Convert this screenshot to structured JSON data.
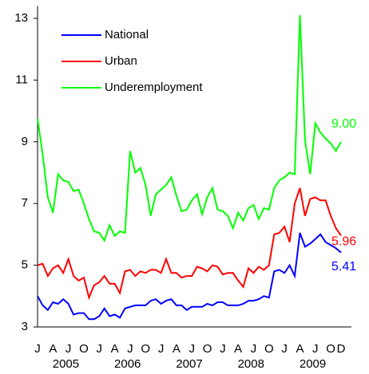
{
  "chart_data": {
    "type": "line",
    "categories": [
      "J",
      null,
      null,
      "A",
      null,
      null,
      "J",
      null,
      null,
      "O",
      null,
      null,
      "J",
      null,
      null,
      "A",
      null,
      null,
      "J",
      null,
      null,
      "O",
      null,
      null,
      "J",
      null,
      null,
      "A",
      null,
      null,
      "J",
      null,
      null,
      "O",
      null,
      null,
      "J",
      null,
      null,
      "A",
      null,
      null,
      "J",
      null,
      null,
      "O",
      null,
      null,
      "J",
      null,
      null,
      "A",
      null,
      null,
      "J",
      null,
      null,
      "O",
      null,
      "D"
    ],
    "years": [
      "2005",
      "2006",
      "2007",
      "2008",
      "2009"
    ],
    "ylim": [
      3,
      13.4
    ],
    "yticks": [
      3,
      5,
      7,
      9,
      11,
      13
    ],
    "legend": "upper left",
    "series": [
      {
        "name": "National",
        "color": "#0000ff",
        "values": [
          4.0,
          3.7,
          3.55,
          3.8,
          3.75,
          3.9,
          3.75,
          3.4,
          3.45,
          3.45,
          3.25,
          3.25,
          3.35,
          3.6,
          3.35,
          3.4,
          3.3,
          3.6,
          3.65,
          3.7,
          3.7,
          3.7,
          3.85,
          3.9,
          3.75,
          3.85,
          3.9,
          3.7,
          3.7,
          3.55,
          3.65,
          3.65,
          3.65,
          3.75,
          3.7,
          3.8,
          3.8,
          3.7,
          3.7,
          3.7,
          3.75,
          3.85,
          3.85,
          3.9,
          4.0,
          3.95,
          4.8,
          4.85,
          4.75,
          5.0,
          4.65,
          6.05,
          5.6,
          5.7,
          5.85,
          6.0,
          5.75,
          5.65,
          5.55,
          5.41
        ],
        "value_labels": [
          null,
          null,
          null,
          null,
          null,
          null,
          null,
          null,
          null,
          null,
          null,
          null,
          null,
          null,
          null,
          null,
          null,
          null,
          null,
          null,
          null,
          null,
          null,
          null,
          null,
          null,
          null,
          null,
          null,
          null,
          null,
          null,
          null,
          null,
          null,
          null,
          null,
          null,
          null,
          null,
          null,
          null,
          null,
          null,
          null,
          null,
          null,
          null,
          null,
          null,
          null,
          null,
          null,
          null,
          null,
          null,
          null,
          null,
          null,
          "5.41"
        ]
      },
      {
        "name": "Urban",
        "color": "#ff0000",
        "values": [
          5.0,
          5.05,
          4.65,
          4.9,
          5.0,
          4.75,
          5.2,
          4.65,
          4.5,
          4.6,
          3.95,
          4.35,
          4.45,
          4.65,
          4.4,
          4.4,
          4.1,
          4.8,
          4.85,
          4.65,
          4.8,
          4.75,
          4.85,
          4.85,
          4.75,
          5.2,
          4.75,
          4.75,
          4.6,
          4.65,
          4.65,
          4.95,
          4.9,
          4.8,
          5.0,
          4.95,
          4.7,
          4.75,
          4.75,
          4.5,
          4.3,
          4.9,
          4.75,
          4.95,
          4.85,
          5.0,
          6.0,
          6.05,
          6.25,
          5.75,
          7.0,
          7.5,
          6.6,
          7.15,
          7.2,
          7.1,
          7.1,
          6.6,
          6.2,
          5.96
        ],
        "value_labels": [
          null,
          null,
          null,
          null,
          null,
          null,
          null,
          null,
          null,
          null,
          null,
          null,
          null,
          null,
          null,
          null,
          null,
          null,
          null,
          null,
          null,
          null,
          null,
          null,
          null,
          null,
          null,
          null,
          null,
          null,
          null,
          null,
          null,
          null,
          null,
          null,
          null,
          null,
          null,
          null,
          null,
          null,
          null,
          null,
          null,
          null,
          null,
          null,
          null,
          null,
          null,
          null,
          null,
          null,
          null,
          null,
          null,
          null,
          null,
          "5.96"
        ]
      },
      {
        "name": "Underemployment",
        "color": "#00ff00",
        "values": [
          9.75,
          8.6,
          7.2,
          6.7,
          7.95,
          7.75,
          7.7,
          7.4,
          7.45,
          7.0,
          6.5,
          6.1,
          6.05,
          5.8,
          6.3,
          5.95,
          6.1,
          6.05,
          8.7,
          8.0,
          8.15,
          7.6,
          6.6,
          7.3,
          7.45,
          7.6,
          7.85,
          7.25,
          6.75,
          6.8,
          7.1,
          7.3,
          6.65,
          7.2,
          7.5,
          6.8,
          6.75,
          6.6,
          6.2,
          6.7,
          6.45,
          6.85,
          6.95,
          6.5,
          6.85,
          6.8,
          7.5,
          7.75,
          7.85,
          8.0,
          7.95,
          13.1,
          9.05,
          7.95,
          9.6,
          9.3,
          9.1,
          8.95,
          8.7,
          9.0
        ],
        "value_labels": [
          null,
          null,
          null,
          null,
          null,
          null,
          null,
          null,
          null,
          null,
          null,
          null,
          null,
          null,
          null,
          null,
          null,
          null,
          null,
          null,
          null,
          null,
          null,
          null,
          null,
          null,
          null,
          null,
          null,
          null,
          null,
          null,
          null,
          null,
          null,
          null,
          null,
          null,
          null,
          null,
          null,
          null,
          null,
          null,
          null,
          null,
          null,
          null,
          null,
          null,
          null,
          null,
          null,
          null,
          null,
          null,
          null,
          null,
          null,
          "9.00"
        ]
      }
    ]
  }
}
